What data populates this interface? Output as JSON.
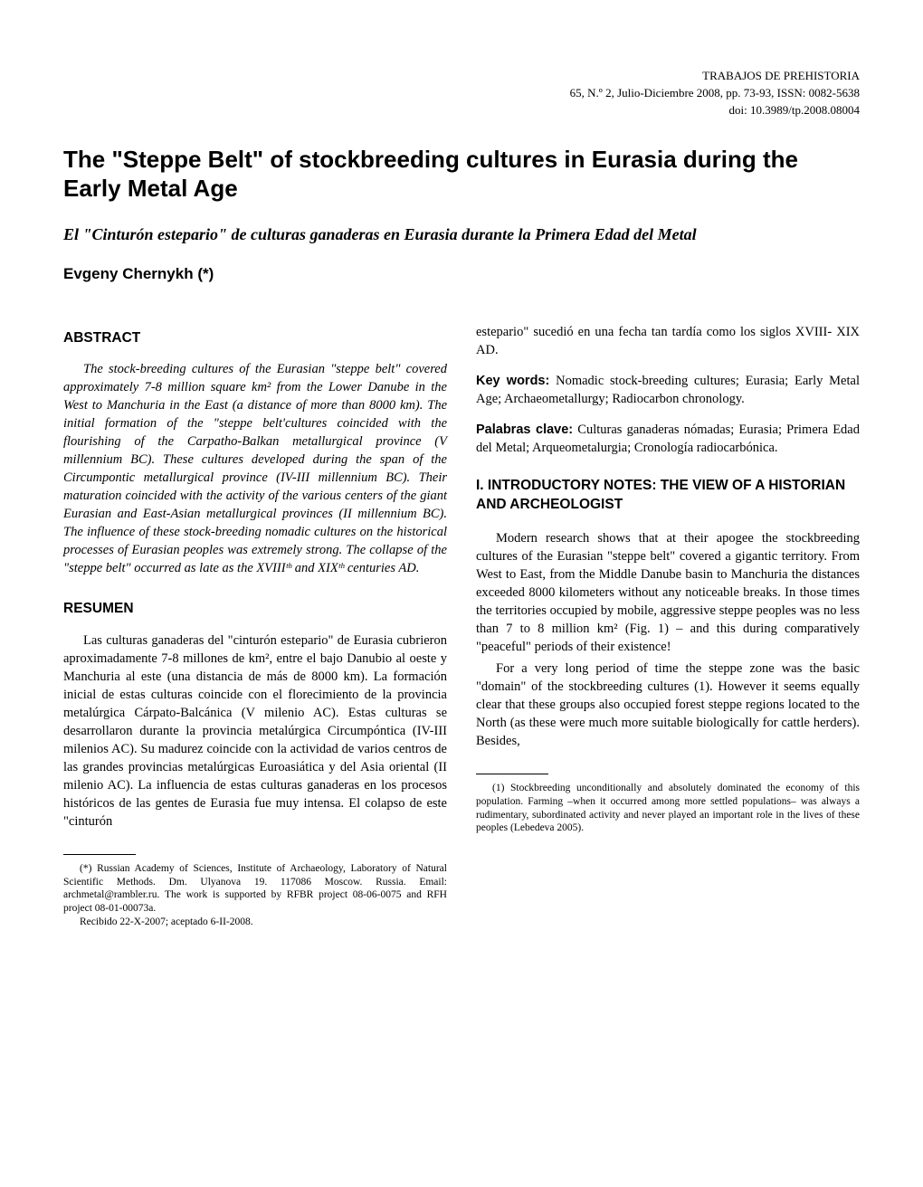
{
  "header": {
    "journal": "TRABAJOS DE PREHISTORIA",
    "issue": "65, N.º 2, Julio-Diciembre 2008, pp. 73-93, ISSN: 0082-5638",
    "doi": "doi: 10.3989/tp.2008.08004"
  },
  "title": "The \"Steppe Belt\" of stockbreeding cultures in Eurasia during the Early Metal Age",
  "subtitle": "El \"Cinturón estepario\" de culturas ganaderas en Eurasia durante la Primera Edad del Metal",
  "author": "Evgeny Chernykh (*)",
  "left": {
    "abstract_head": "ABSTRACT",
    "abstract_body": "The stock-breeding cultures of the Eurasian \"steppe belt\" covered approximately 7-8 million square km² from the Lower Danube in the West to Manchuria in the East (a distance of more than 8000 km). The initial formation of the \"steppe belt'cultures coincided with the flourishing of the Carpatho-Balkan metallurgical province (V millennium BC). These cultures developed during the span of the Circumpontic metallurgical province (IV-III millennium BC). Their maturation coincided with the activity of the various centers of the giant Eurasian and East-Asian metallurgical provinces (II millennium BC). The influence of these stock-breeding nomadic cultures on the historical processes of Eurasian peoples was extremely strong. The collapse of the \"steppe belt\" occurred as late as the XVIIIᵗʰ and XIXᵗʰ centuries AD.",
    "resumen_head": "RESUMEN",
    "resumen_body": "Las culturas ganaderas del \"cinturón estepario\" de Eurasia cubrieron aproximadamente 7-8 millones de km², entre el bajo Danubio al oeste y Manchuria al este (una distancia de más de 8000 km). La formación inicial de estas culturas coincide con el florecimiento de la provincia metalúrgica Cárpato-Balcánica (V milenio AC). Estas culturas se desarrollaron durante la provincia metalúrgica Circumpóntica (IV-III milenios AC). Su madurez coincide con la actividad de varios centros de las grandes provincias metalúrgicas Euroasiática y del Asia oriental (II milenio AC). La influencia de estas culturas ganaderas en los procesos históricos de las gentes de Eurasia fue muy intensa. El colapso de este \"cinturón",
    "footnote_star": "(*) Russian Academy of Sciences, Institute of Archaeology, Laboratory of Natural Scientific Methods. Dm. Ulyanova 19. 117086 Moscow. Russia. Email: archmetal@rambler.ru. The work is supported by RFBR project 08-06-0075 and RFH project 08-01-00073a.",
    "footnote_received": "Recibido 22-X-2007; aceptado 6-II-2008."
  },
  "right": {
    "continuation": "estepario\" sucedió en una fecha tan tardía como los siglos XVIII- XIX AD.",
    "kw_en_label": "Key words:",
    "kw_en": " Nomadic stock-breeding cultures; Eurasia; Early Metal Age; Archaeometallurgy; Radiocarbon chronology.",
    "kw_es_label": "Palabras clave:",
    "kw_es": " Culturas ganaderas nómadas; Eurasia; Primera Edad del Metal; Arqueometalurgia; Cronología radiocarbónica.",
    "section1_head": "I. INTRODUCTORY NOTES: THE VIEW OF A HISTORIAN AND ARCHEOLOGIST",
    "para1": "Modern research shows that at their apogee the stockbreeding cultures of the Eurasian \"steppe belt\" covered a gigantic territory. From West to East, from the Middle Danube basin to Manchuria the distances exceeded 8000 kilometers without any noticeable breaks. In those times the territories occupied by mobile, aggressive steppe peoples was no less than 7 to 8 million km² (Fig. 1) – and this during comparatively \"peaceful\" periods of their existence!",
    "para2": "For a very long period of time the steppe zone was the basic \"domain\" of the stockbreeding cultures (1). However it seems equally clear that these groups also occupied forest steppe regions located to the North (as these were much more suitable biologically for cattle herders). Besides,",
    "footnote_1": "(1) Stockbreeding unconditionally and absolutely dominated the economy of this population. Farming –when it occurred among more settled populations– was always a rudimentary, subordinated activity and never played an important role in the lives of these peoples (Lebedeva 2005)."
  }
}
